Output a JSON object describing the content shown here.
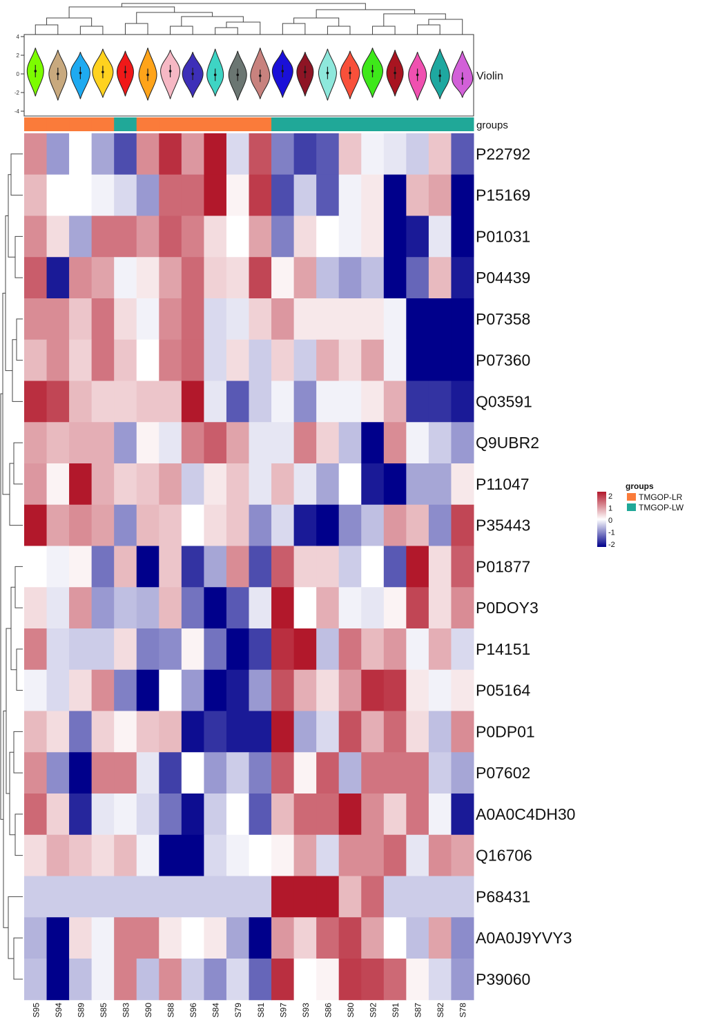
{
  "chart_data": {
    "type": "heatmap",
    "title": "",
    "xlabel": "",
    "ylabel": "",
    "columns": [
      "S95",
      "S94",
      "S89",
      "S85",
      "S83",
      "S90",
      "S88",
      "S96",
      "S84",
      "S79",
      "S81",
      "S97",
      "S93",
      "S86",
      "S80",
      "S92",
      "S91",
      "S87",
      "S82",
      "S78"
    ],
    "rows": [
      "P22792",
      "P15169",
      "P01031",
      "P04439",
      "P07358",
      "P07360",
      "Q03591",
      "Q9UBR2",
      "P11047",
      "P35443",
      "P01877",
      "P0DOY3",
      "P14151",
      "P05164",
      "P0DP01",
      "P07602",
      "A0A0C4DH30",
      "Q16706",
      "P68431",
      "A0A0J9YVY3",
      "P39060"
    ],
    "values": [
      [
        1.0,
        -0.8,
        0.0,
        -0.7,
        -1.4,
        1.0,
        1.8,
        0.9,
        2.3,
        -0.3,
        1.5,
        -1.0,
        -1.5,
        -1.3,
        0.5,
        -0.1,
        -0.2,
        -0.4,
        0.5,
        -1.3
      ],
      [
        0.6,
        0.0,
        0.0,
        -0.1,
        -0.3,
        -0.8,
        1.3,
        1.3,
        2.2,
        0.1,
        1.7,
        -1.4,
        -0.4,
        -1.3,
        -0.1,
        0.2,
        -2.0,
        0.6,
        0.8,
        -2.2
      ],
      [
        1.0,
        0.3,
        -0.7,
        1.2,
        1.2,
        0.9,
        1.4,
        1.1,
        0.3,
        0.0,
        0.8,
        -1.0,
        0.3,
        0.0,
        -0.1,
        0.2,
        -2.4,
        -1.8,
        -0.2,
        -2.0
      ],
      [
        1.4,
        -1.8,
        1.0,
        0.8,
        -0.1,
        0.2,
        0.8,
        1.3,
        0.4,
        0.3,
        1.6,
        0.1,
        0.8,
        -0.5,
        -0.8,
        -0.5,
        -2.4,
        -1.2,
        0.6,
        -1.8
      ],
      [
        1.0,
        1.0,
        0.5,
        1.2,
        0.3,
        -0.1,
        1.0,
        1.3,
        -0.3,
        -0.2,
        0.4,
        0.9,
        0.2,
        0.2,
        0.2,
        0.2,
        -0.1,
        -2.4,
        -2.4,
        -2.4
      ],
      [
        0.6,
        1.0,
        0.4,
        1.2,
        0.5,
        0.0,
        1.1,
        1.3,
        -0.3,
        0.3,
        -0.4,
        0.4,
        -0.4,
        0.7,
        0.3,
        0.8,
        -0.1,
        -2.4,
        -2.3,
        -2.4
      ],
      [
        1.8,
        1.6,
        0.6,
        0.4,
        0.4,
        0.5,
        0.5,
        2.3,
        -0.2,
        -1.3,
        -0.4,
        -0.1,
        -0.9,
        -0.1,
        -0.1,
        0.2,
        0.7,
        -1.6,
        -1.6,
        -1.8
      ],
      [
        0.8,
        0.6,
        0.7,
        0.7,
        -0.8,
        0.1,
        -0.2,
        1.1,
        1.4,
        0.8,
        -0.2,
        -0.2,
        1.1,
        0.4,
        -0.5,
        -2.4,
        1.0,
        -0.1,
        -0.4,
        -0.8
      ],
      [
        0.9,
        0.1,
        2.3,
        0.7,
        0.4,
        0.5,
        0.8,
        -0.4,
        0.2,
        0.5,
        -0.2,
        0.6,
        -0.2,
        -0.7,
        0.0,
        -1.8,
        -2.4,
        -0.7,
        -0.7,
        0.2
      ],
      [
        2.0,
        0.8,
        1.0,
        0.8,
        -0.9,
        0.6,
        0.5,
        0.0,
        0.3,
        0.5,
        -0.9,
        -0.3,
        -1.8,
        -2.4,
        -0.9,
        -0.5,
        0.9,
        0.6,
        -0.9,
        1.6
      ],
      [
        0.0,
        -0.1,
        0.1,
        -1.1,
        0.6,
        -2.0,
        0.5,
        -1.6,
        -0.7,
        1.0,
        -1.4,
        1.4,
        0.4,
        0.4,
        -0.4,
        0.0,
        -1.3,
        2.2,
        0.3,
        1.4
      ],
      [
        0.3,
        -0.2,
        0.9,
        -0.8,
        -0.5,
        -0.6,
        0.6,
        -1.1,
        -2.4,
        -1.3,
        -0.2,
        2.2,
        0.0,
        0.7,
        -0.1,
        -0.2,
        0.1,
        1.6,
        0.3,
        1.0
      ],
      [
        1.1,
        -0.3,
        -0.4,
        -0.4,
        0.3,
        -1.0,
        -0.9,
        0.1,
        -1.1,
        -2.1,
        -1.5,
        1.8,
        2.1,
        -0.5,
        1.2,
        0.6,
        0.9,
        -0.1,
        0.7,
        -0.3
      ],
      [
        -0.1,
        -0.3,
        0.3,
        1.0,
        -1.0,
        -2.2,
        0.0,
        -0.8,
        -2.2,
        -1.8,
        -0.8,
        1.5,
        0.7,
        0.3,
        0.9,
        1.8,
        1.7,
        0.2,
        -0.1,
        0.2
      ],
      [
        0.6,
        0.3,
        -1.1,
        0.4,
        0.1,
        0.5,
        0.6,
        -1.9,
        -1.6,
        -1.8,
        -1.8,
        2.2,
        -0.7,
        -0.3,
        1.5,
        0.7,
        1.3,
        0.3,
        -0.5,
        1.0
      ],
      [
        1.0,
        -0.9,
        -2.4,
        1.1,
        1.1,
        -0.2,
        -1.5,
        0.0,
        -0.8,
        -0.4,
        -1.0,
        1.4,
        0.1,
        1.4,
        -0.6,
        1.2,
        1.2,
        1.2,
        -0.4,
        -0.7
      ],
      [
        1.3,
        0.4,
        -1.7,
        -0.2,
        -0.1,
        -0.3,
        -1.1,
        -1.9,
        -0.4,
        0.0,
        -1.3,
        0.6,
        1.3,
        1.3,
        2.0,
        1.0,
        0.4,
        1.2,
        -0.1,
        -1.8
      ],
      [
        0.3,
        0.7,
        0.5,
        0.3,
        0.6,
        -0.1,
        -2.4,
        -2.1,
        -0.3,
        -0.1,
        0.0,
        0.1,
        0.8,
        -0.3,
        1.0,
        1.0,
        1.3,
        -0.2,
        1.0,
        0.8
      ],
      [
        -0.4,
        -0.4,
        -0.4,
        -0.4,
        -0.4,
        -0.4,
        -0.4,
        -0.4,
        -0.4,
        -0.4,
        -0.4,
        2.0,
        2.3,
        2.3,
        0.6,
        1.3,
        -0.4,
        -0.4,
        -0.4,
        -0.4
      ],
      [
        -0.6,
        -2.4,
        0.3,
        -0.1,
        1.1,
        1.1,
        0.2,
        0.0,
        0.2,
        -0.7,
        -2.4,
        0.9,
        0.4,
        1.3,
        1.6,
        0.8,
        0.0,
        -0.5,
        0.8,
        -0.9
      ],
      [
        -0.5,
        -2.4,
        -0.5,
        -0.1,
        1.1,
        -0.5,
        1.0,
        -0.4,
        -0.9,
        -0.3,
        -1.2,
        1.8,
        0.0,
        0.1,
        1.7,
        1.6,
        1.3,
        0.1,
        -0.3,
        -0.8
      ]
    ],
    "column_groups": [
      "TMGOP-LR",
      "TMGOP-LR",
      "TMGOP-LR",
      "TMGOP-LR",
      "TMGOP-LW",
      "TMGOP-LR",
      "TMGOP-LR",
      "TMGOP-LR",
      "TMGOP-LR",
      "TMGOP-LR",
      "TMGOP-LR",
      "TMGOP-LW",
      "TMGOP-LW",
      "TMGOP-LW",
      "TMGOP-LW",
      "TMGOP-LW",
      "TMGOP-LW",
      "TMGOP-LW",
      "TMGOP-LW",
      "TMGOP-LW"
    ],
    "violin": {
      "label": "Violin",
      "ylim": [
        -4,
        4
      ],
      "ticks": [
        4,
        2,
        0,
        -2,
        -4
      ],
      "colors": [
        "#7CFC00",
        "#C8A97E",
        "#1EAAF1",
        "#FFD21F",
        "#F01818",
        "#FFA41A",
        "#F6B8C4",
        "#3D2FB8",
        "#3ED4C4",
        "#6B7672",
        "#C8827E",
        "#1A10D8",
        "#8E1424",
        "#8EE8DC",
        "#F8503A",
        "#3EE81A",
        "#A81420",
        "#F050B0",
        "#1EA8A0",
        "#D260D8"
      ],
      "medians": [
        0.3,
        0.0,
        0.1,
        0.2,
        0.2,
        -0.1,
        0.3,
        0.0,
        -0.1,
        -0.1,
        -0.2,
        0.3,
        0.2,
        0.1,
        0.1,
        0.3,
        0.1,
        -0.1,
        -0.2,
        -0.5
      ]
    },
    "annotation_label": "groups",
    "legend": {
      "colorbar_ticks": [
        2,
        1,
        0,
        -1,
        -2
      ],
      "colorbar_colors": [
        "#B2182B",
        "#FFFFFF",
        "#00008B"
      ],
      "groups_title": "groups",
      "groups": [
        {
          "name": "TMGOP-LR",
          "color": "#FA7B3A"
        },
        {
          "name": "TMGOP-LW",
          "color": "#20A898"
        }
      ],
      "placement": "right"
    }
  }
}
